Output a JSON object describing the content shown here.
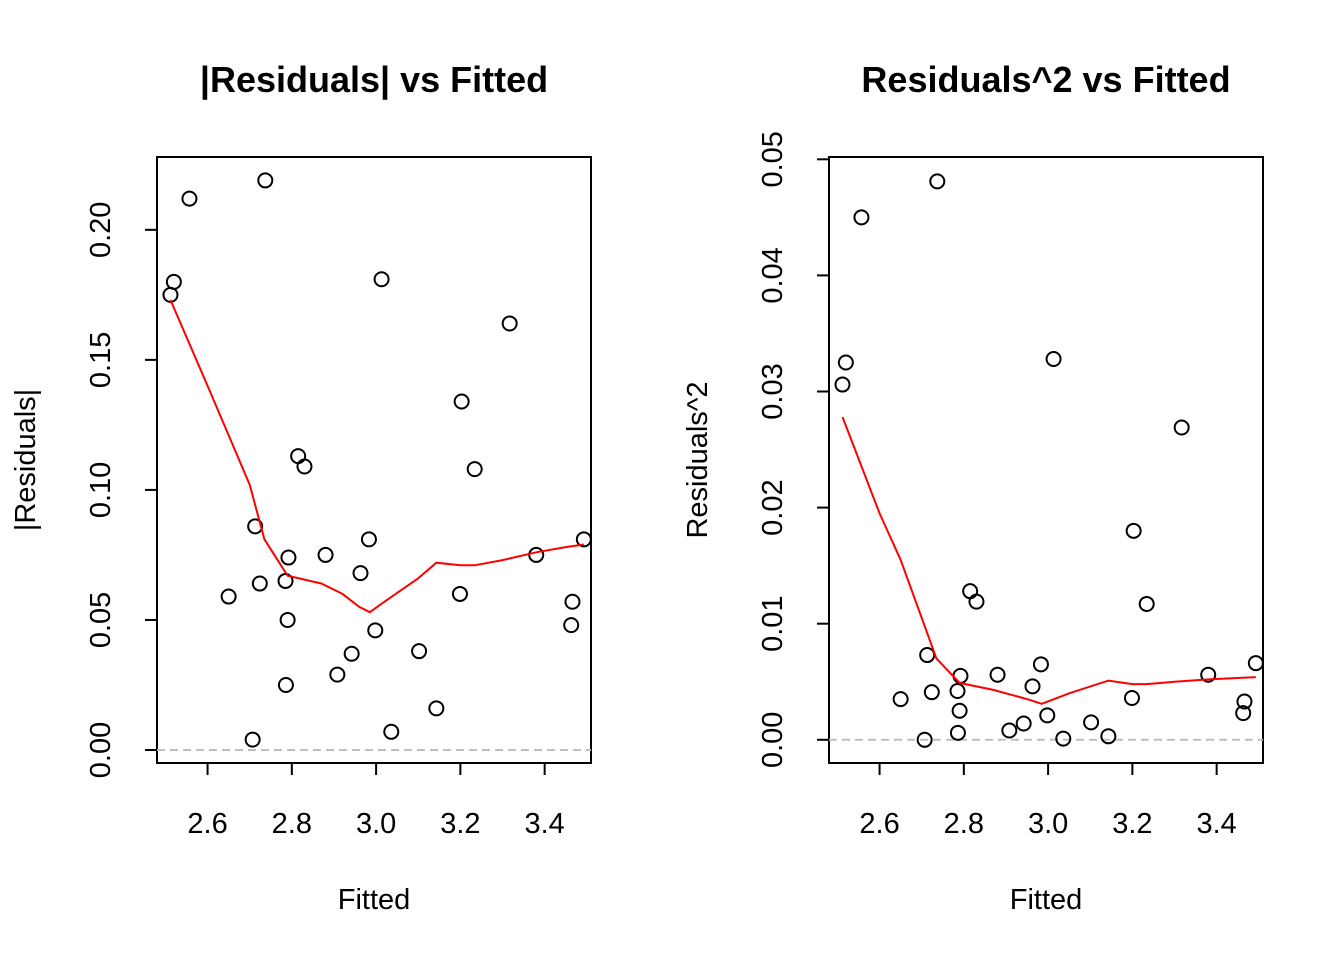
{
  "chart_data": [
    {
      "type": "scatter",
      "title": "|Residuals| vs Fitted",
      "xlabel": "Fitted",
      "ylabel": "|Residuals|",
      "xlim": [
        2.48,
        3.51
      ],
      "ylim": [
        -0.005,
        0.228
      ],
      "xticks": [
        2.6,
        2.8,
        3.0,
        3.2,
        3.4
      ],
      "xtick_labels": [
        "2.6",
        "2.8",
        "3.0",
        "3.2",
        "3.4"
      ],
      "yticks": [
        0.0,
        0.05,
        0.1,
        0.15,
        0.2
      ],
      "ytick_labels": [
        "0.00",
        "0.05",
        "0.10",
        "0.15",
        "0.20"
      ],
      "reference_line": {
        "y": 0,
        "color": "#bfbfbf",
        "style": "dashed"
      },
      "points_color": "#000000",
      "points": [
        {
          "x": 2.512,
          "y": 0.175
        },
        {
          "x": 2.52,
          "y": 0.18
        },
        {
          "x": 2.557,
          "y": 0.212
        },
        {
          "x": 2.65,
          "y": 0.059
        },
        {
          "x": 2.707,
          "y": 0.004
        },
        {
          "x": 2.713,
          "y": 0.086
        },
        {
          "x": 2.724,
          "y": 0.064
        },
        {
          "x": 2.737,
          "y": 0.219
        },
        {
          "x": 2.785,
          "y": 0.065
        },
        {
          "x": 2.786,
          "y": 0.025
        },
        {
          "x": 2.79,
          "y": 0.05
        },
        {
          "x": 2.792,
          "y": 0.074
        },
        {
          "x": 2.815,
          "y": 0.113
        },
        {
          "x": 2.83,
          "y": 0.109
        },
        {
          "x": 2.88,
          "y": 0.075
        },
        {
          "x": 2.908,
          "y": 0.029
        },
        {
          "x": 2.942,
          "y": 0.037
        },
        {
          "x": 2.963,
          "y": 0.068
        },
        {
          "x": 2.983,
          "y": 0.081
        },
        {
          "x": 2.998,
          "y": 0.046
        },
        {
          "x": 3.013,
          "y": 0.181
        },
        {
          "x": 3.036,
          "y": 0.007
        },
        {
          "x": 3.102,
          "y": 0.038
        },
        {
          "x": 3.143,
          "y": 0.016
        },
        {
          "x": 3.199,
          "y": 0.06
        },
        {
          "x": 3.203,
          "y": 0.134
        },
        {
          "x": 3.234,
          "y": 0.108
        },
        {
          "x": 3.317,
          "y": 0.164
        },
        {
          "x": 3.38,
          "y": 0.075
        },
        {
          "x": 3.463,
          "y": 0.048
        },
        {
          "x": 3.466,
          "y": 0.057
        },
        {
          "x": 3.493,
          "y": 0.081
        }
      ],
      "smooth_color": "#ff0000",
      "smooth": [
        {
          "x": 2.512,
          "y": 0.173
        },
        {
          "x": 2.6,
          "y": 0.14
        },
        {
          "x": 2.7,
          "y": 0.102
        },
        {
          "x": 2.735,
          "y": 0.081
        },
        {
          "x": 2.79,
          "y": 0.067
        },
        {
          "x": 2.87,
          "y": 0.064
        },
        {
          "x": 2.92,
          "y": 0.06
        },
        {
          "x": 2.96,
          "y": 0.055
        },
        {
          "x": 2.985,
          "y": 0.053
        },
        {
          "x": 3.02,
          "y": 0.057
        },
        {
          "x": 3.1,
          "y": 0.066
        },
        {
          "x": 3.143,
          "y": 0.072
        },
        {
          "x": 3.2,
          "y": 0.071
        },
        {
          "x": 3.234,
          "y": 0.071
        },
        {
          "x": 3.3,
          "y": 0.073
        },
        {
          "x": 3.38,
          "y": 0.076
        },
        {
          "x": 3.45,
          "y": 0.078
        },
        {
          "x": 3.493,
          "y": 0.079
        }
      ]
    },
    {
      "type": "scatter",
      "title": "Residuals^2 vs Fitted",
      "xlabel": "Fitted",
      "ylabel": "Residuals^2",
      "xlim": [
        2.48,
        3.51
      ],
      "ylim": [
        -0.002,
        0.0502
      ],
      "xticks": [
        2.6,
        2.8,
        3.0,
        3.2,
        3.4
      ],
      "xtick_labels": [
        "2.6",
        "2.8",
        "3.0",
        "3.2",
        "3.4"
      ],
      "yticks": [
        0.0,
        0.01,
        0.02,
        0.03,
        0.04,
        0.05
      ],
      "ytick_labels": [
        "0.00",
        "0.01",
        "0.02",
        "0.03",
        "0.04",
        "0.05"
      ],
      "reference_line": {
        "y": 0,
        "color": "#bfbfbf",
        "style": "dashed"
      },
      "points_color": "#000000",
      "points": [
        {
          "x": 2.512,
          "y": 0.0306
        },
        {
          "x": 2.52,
          "y": 0.0325
        },
        {
          "x": 2.557,
          "y": 0.045
        },
        {
          "x": 2.65,
          "y": 0.0035
        },
        {
          "x": 2.707,
          "y": 0.0
        },
        {
          "x": 2.713,
          "y": 0.0073
        },
        {
          "x": 2.724,
          "y": 0.0041
        },
        {
          "x": 2.737,
          "y": 0.0481
        },
        {
          "x": 2.785,
          "y": 0.0042
        },
        {
          "x": 2.786,
          "y": 0.0006
        },
        {
          "x": 2.79,
          "y": 0.0025
        },
        {
          "x": 2.792,
          "y": 0.0055
        },
        {
          "x": 2.815,
          "y": 0.0128
        },
        {
          "x": 2.83,
          "y": 0.0119
        },
        {
          "x": 2.88,
          "y": 0.0056
        },
        {
          "x": 2.908,
          "y": 0.0008
        },
        {
          "x": 2.942,
          "y": 0.0014
        },
        {
          "x": 2.963,
          "y": 0.0046
        },
        {
          "x": 2.983,
          "y": 0.0065
        },
        {
          "x": 2.998,
          "y": 0.0021
        },
        {
          "x": 3.013,
          "y": 0.0328
        },
        {
          "x": 3.036,
          "y": 0.0001
        },
        {
          "x": 3.102,
          "y": 0.0015
        },
        {
          "x": 3.143,
          "y": 0.0003
        },
        {
          "x": 3.199,
          "y": 0.0036
        },
        {
          "x": 3.203,
          "y": 0.018
        },
        {
          "x": 3.234,
          "y": 0.0117
        },
        {
          "x": 3.317,
          "y": 0.0269
        },
        {
          "x": 3.38,
          "y": 0.0056
        },
        {
          "x": 3.463,
          "y": 0.0023
        },
        {
          "x": 3.466,
          "y": 0.0033
        },
        {
          "x": 3.493,
          "y": 0.0066
        }
      ],
      "smooth_color": "#ff0000",
      "smooth": [
        {
          "x": 2.512,
          "y": 0.0278
        },
        {
          "x": 2.6,
          "y": 0.0195
        },
        {
          "x": 2.65,
          "y": 0.0155
        },
        {
          "x": 2.7,
          "y": 0.0105
        },
        {
          "x": 2.735,
          "y": 0.007
        },
        {
          "x": 2.79,
          "y": 0.0049
        },
        {
          "x": 2.87,
          "y": 0.0043
        },
        {
          "x": 2.95,
          "y": 0.0035
        },
        {
          "x": 2.985,
          "y": 0.0031
        },
        {
          "x": 3.05,
          "y": 0.004
        },
        {
          "x": 3.143,
          "y": 0.0051
        },
        {
          "x": 3.2,
          "y": 0.0048
        },
        {
          "x": 3.234,
          "y": 0.0048
        },
        {
          "x": 3.3,
          "y": 0.005
        },
        {
          "x": 3.38,
          "y": 0.0052
        },
        {
          "x": 3.493,
          "y": 0.0054
        }
      ]
    }
  ]
}
